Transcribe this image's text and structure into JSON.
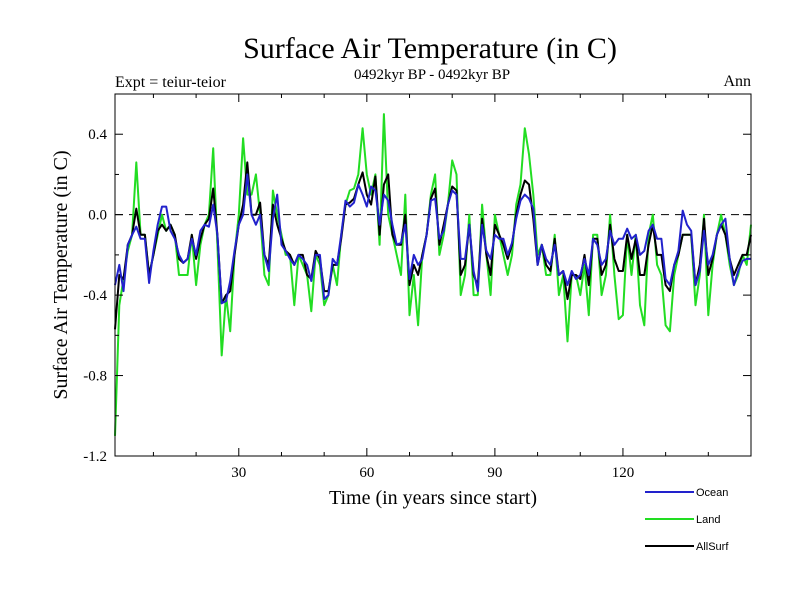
{
  "chart_data": {
    "type": "line",
    "title": "Surface Air Temperature (in C)",
    "subtitle": "0492kyr BP - 0492kyr BP",
    "left_annotation": "Expt = teiur-teior",
    "right_annotation": "Ann",
    "xlabel": "Time (in years since start)",
    "ylabel": "Surface Air Temperature (in C)",
    "xlim": [
      1,
      150
    ],
    "ylim": [
      -1.2,
      0.6
    ],
    "xticks": [
      30,
      60,
      90,
      120
    ],
    "xtick_labels": [
      "30",
      "60",
      "90",
      "120"
    ],
    "yticks": [
      -1.2,
      -0.8,
      -0.4,
      0.0,
      0.4
    ],
    "ytick_labels": [
      "-1.2",
      "-0.8",
      "-0.4",
      "0.0",
      "0.4"
    ],
    "zero_line": true,
    "grid": false,
    "legend_position": "bottom-right",
    "series": [
      {
        "name": "Land",
        "color": "#22dd22",
        "x": [
          1,
          2,
          3,
          4,
          5,
          6,
          7,
          8,
          9,
          10,
          11,
          12,
          13,
          14,
          15,
          16,
          17,
          18,
          19,
          20,
          21,
          22,
          23,
          24,
          25,
          26,
          27,
          28,
          29,
          30,
          31,
          32,
          33,
          34,
          35,
          36,
          37,
          38,
          39,
          40,
          41,
          42,
          43,
          44,
          45,
          46,
          47,
          48,
          49,
          50,
          51,
          52,
          53,
          54,
          55,
          56,
          57,
          58,
          59,
          60,
          61,
          62,
          63,
          64,
          65,
          66,
          67,
          68,
          69,
          70,
          71,
          72,
          73,
          74,
          75,
          76,
          77,
          78,
          79,
          80,
          81,
          82,
          83,
          84,
          85,
          86,
          87,
          88,
          89,
          90,
          91,
          92,
          93,
          94,
          95,
          96,
          97,
          98,
          99,
          100,
          101,
          102,
          103,
          104,
          105,
          106,
          107,
          108,
          109,
          110,
          111,
          112,
          113,
          114,
          115,
          116,
          117,
          118,
          119,
          120,
          121,
          122,
          123,
          124,
          125,
          126,
          127,
          128,
          129,
          130,
          131,
          132,
          133,
          134,
          135,
          136,
          137,
          138,
          139,
          140,
          141,
          142,
          143,
          144,
          145,
          146,
          147,
          148,
          149,
          150
        ],
        "y": [
          -1.1,
          -0.45,
          -0.32,
          -0.18,
          -0.1,
          0.26,
          -0.1,
          -0.1,
          -0.3,
          -0.2,
          -0.1,
          0.0,
          -0.08,
          -0.05,
          -0.1,
          -0.3,
          -0.3,
          -0.3,
          -0.1,
          -0.35,
          -0.15,
          -0.05,
          0.0,
          0.33,
          -0.15,
          -0.7,
          -0.4,
          -0.58,
          -0.2,
          0.0,
          0.38,
          0.1,
          0.1,
          0.2,
          0.0,
          -0.3,
          -0.35,
          0.12,
          0.0,
          -0.1,
          -0.2,
          -0.2,
          -0.45,
          -0.2,
          -0.25,
          -0.3,
          -0.48,
          -0.2,
          -0.25,
          -0.45,
          -0.4,
          -0.25,
          -0.35,
          -0.1,
          0.05,
          0.12,
          0.13,
          0.2,
          0.43,
          0.2,
          0.1,
          0.2,
          -0.15,
          0.5,
          0.0,
          -0.1,
          -0.2,
          -0.3,
          0.1,
          -0.5,
          -0.3,
          -0.55,
          -0.2,
          -0.1,
          0.1,
          0.2,
          -0.2,
          -0.1,
          0.05,
          0.27,
          0.2,
          -0.4,
          -0.3,
          0.0,
          -0.4,
          -0.4,
          0.05,
          -0.2,
          -0.4,
          0.0,
          -0.1,
          -0.2,
          -0.3,
          -0.2,
          0.05,
          0.15,
          0.43,
          0.3,
          0.1,
          -0.2,
          -0.15,
          -0.3,
          -0.3,
          -0.1,
          -0.4,
          -0.3,
          -0.63,
          -0.3,
          -0.3,
          -0.4,
          -0.25,
          -0.5,
          -0.1,
          -0.1,
          -0.4,
          -0.3,
          0.0,
          -0.3,
          -0.52,
          -0.5,
          -0.1,
          -0.3,
          -0.1,
          -0.45,
          -0.55,
          -0.1,
          0.0,
          -0.25,
          -0.3,
          -0.55,
          -0.58,
          -0.3,
          -0.2,
          -0.1,
          -0.1,
          -0.1,
          -0.45,
          -0.3,
          0.0,
          -0.5,
          -0.25,
          -0.1,
          0.0,
          -0.1,
          -0.25,
          -0.35,
          -0.3,
          -0.2,
          -0.25,
          -0.05
        ]
      },
      {
        "name": "AllSurf",
        "color": "#000000",
        "x": [
          1,
          2,
          3,
          4,
          5,
          6,
          7,
          8,
          9,
          10,
          11,
          12,
          13,
          14,
          15,
          16,
          17,
          18,
          19,
          20,
          21,
          22,
          23,
          24,
          25,
          26,
          27,
          28,
          29,
          30,
          31,
          32,
          33,
          34,
          35,
          36,
          37,
          38,
          39,
          40,
          41,
          42,
          43,
          44,
          45,
          46,
          47,
          48,
          49,
          50,
          51,
          52,
          53,
          54,
          55,
          56,
          57,
          58,
          59,
          60,
          61,
          62,
          63,
          64,
          65,
          66,
          67,
          68,
          69,
          70,
          71,
          72,
          73,
          74,
          75,
          76,
          77,
          78,
          79,
          80,
          81,
          82,
          83,
          84,
          85,
          86,
          87,
          88,
          89,
          90,
          91,
          92,
          93,
          94,
          95,
          96,
          97,
          98,
          99,
          100,
          101,
          102,
          103,
          104,
          105,
          106,
          107,
          108,
          109,
          110,
          111,
          112,
          113,
          114,
          115,
          116,
          117,
          118,
          119,
          120,
          121,
          122,
          123,
          124,
          125,
          126,
          127,
          128,
          129,
          130,
          131,
          132,
          133,
          134,
          135,
          136,
          137,
          138,
          139,
          140,
          141,
          142,
          143,
          144,
          145,
          146,
          147,
          148,
          149,
          150
        ],
        "y": [
          -0.57,
          -0.3,
          -0.32,
          -0.15,
          -0.1,
          0.03,
          -0.1,
          -0.1,
          -0.3,
          -0.2,
          -0.08,
          -0.05,
          -0.08,
          -0.05,
          -0.1,
          -0.22,
          -0.24,
          -0.22,
          -0.1,
          -0.22,
          -0.12,
          -0.05,
          -0.02,
          0.13,
          -0.1,
          -0.44,
          -0.4,
          -0.38,
          -0.2,
          -0.05,
          0.05,
          0.26,
          0.0,
          0.0,
          0.06,
          -0.2,
          -0.25,
          0.05,
          -0.05,
          -0.12,
          -0.18,
          -0.2,
          -0.25,
          -0.2,
          -0.2,
          -0.3,
          -0.32,
          -0.18,
          -0.22,
          -0.38,
          -0.38,
          -0.25,
          -0.25,
          -0.12,
          0.05,
          0.06,
          0.08,
          0.15,
          0.21,
          0.1,
          0.05,
          0.19,
          -0.1,
          0.15,
          0.2,
          -0.1,
          -0.15,
          -0.15,
          0.0,
          -0.35,
          -0.25,
          -0.3,
          -0.2,
          -0.1,
          0.08,
          0.13,
          -0.15,
          -0.05,
          0.05,
          0.14,
          0.12,
          -0.3,
          -0.25,
          -0.05,
          -0.3,
          -0.35,
          -0.02,
          -0.2,
          -0.3,
          -0.05,
          -0.1,
          -0.15,
          -0.22,
          -0.15,
          0.0,
          0.1,
          0.17,
          0.15,
          -0.02,
          -0.25,
          -0.15,
          -0.25,
          -0.28,
          -0.12,
          -0.3,
          -0.28,
          -0.42,
          -0.3,
          -0.3,
          -0.32,
          -0.2,
          -0.35,
          -0.12,
          -0.12,
          -0.3,
          -0.25,
          -0.05,
          -0.22,
          -0.28,
          -0.28,
          -0.1,
          -0.22,
          -0.12,
          -0.3,
          -0.3,
          -0.15,
          -0.05,
          -0.2,
          -0.2,
          -0.35,
          -0.38,
          -0.25,
          -0.2,
          -0.1,
          -0.1,
          -0.1,
          -0.35,
          -0.25,
          -0.02,
          -0.3,
          -0.22,
          -0.1,
          -0.05,
          -0.1,
          -0.22,
          -0.3,
          -0.25,
          -0.2,
          -0.2,
          -0.1
        ]
      },
      {
        "name": "Ocean",
        "color": "#2222cc",
        "x": [
          1,
          2,
          3,
          4,
          5,
          6,
          7,
          8,
          9,
          10,
          11,
          12,
          13,
          14,
          15,
          16,
          17,
          18,
          19,
          20,
          21,
          22,
          23,
          24,
          25,
          26,
          27,
          28,
          29,
          30,
          31,
          32,
          33,
          34,
          35,
          36,
          37,
          38,
          39,
          40,
          41,
          42,
          43,
          44,
          45,
          46,
          47,
          48,
          49,
          50,
          51,
          52,
          53,
          54,
          55,
          56,
          57,
          58,
          59,
          60,
          61,
          62,
          63,
          64,
          65,
          66,
          67,
          68,
          69,
          70,
          71,
          72,
          73,
          74,
          75,
          76,
          77,
          78,
          79,
          80,
          81,
          82,
          83,
          84,
          85,
          86,
          87,
          88,
          89,
          90,
          91,
          92,
          93,
          94,
          95,
          96,
          97,
          98,
          99,
          100,
          101,
          102,
          103,
          104,
          105,
          106,
          107,
          108,
          109,
          110,
          111,
          112,
          113,
          114,
          115,
          116,
          117,
          118,
          119,
          120,
          121,
          122,
          123,
          124,
          125,
          126,
          127,
          128,
          129,
          130,
          131,
          132,
          133,
          134,
          135,
          136,
          137,
          138,
          139,
          140,
          141,
          142,
          143,
          144,
          145,
          146,
          147,
          148,
          149,
          150
        ],
        "y": [
          -0.35,
          -0.25,
          -0.38,
          -0.15,
          -0.1,
          -0.06,
          -0.12,
          -0.12,
          -0.34,
          -0.18,
          -0.05,
          0.04,
          0.04,
          -0.08,
          -0.12,
          -0.2,
          -0.24,
          -0.22,
          -0.12,
          -0.2,
          -0.08,
          -0.05,
          -0.06,
          0.05,
          -0.1,
          -0.44,
          -0.43,
          -0.33,
          -0.18,
          -0.05,
          0.0,
          0.2,
          0.0,
          -0.05,
          0.0,
          -0.2,
          -0.28,
          -0.02,
          0.1,
          -0.15,
          -0.18,
          -0.22,
          -0.25,
          -0.2,
          -0.22,
          -0.25,
          -0.33,
          -0.2,
          -0.2,
          -0.42,
          -0.4,
          -0.22,
          -0.25,
          -0.1,
          0.07,
          0.04,
          0.06,
          0.15,
          0.1,
          0.04,
          0.14,
          0.12,
          -0.05,
          0.1,
          0.07,
          -0.05,
          -0.15,
          -0.14,
          -0.05,
          -0.32,
          -0.2,
          -0.25,
          -0.22,
          -0.1,
          0.07,
          0.08,
          -0.12,
          -0.08,
          0.05,
          0.12,
          0.1,
          -0.22,
          -0.22,
          -0.05,
          -0.28,
          -0.38,
          -0.05,
          -0.18,
          -0.22,
          -0.1,
          -0.12,
          -0.12,
          -0.2,
          -0.14,
          -0.02,
          0.07,
          0.1,
          0.08,
          0.03,
          -0.25,
          -0.15,
          -0.22,
          -0.25,
          -0.15,
          -0.3,
          -0.28,
          -0.35,
          -0.28,
          -0.32,
          -0.3,
          -0.22,
          -0.3,
          -0.12,
          -0.15,
          -0.25,
          -0.22,
          -0.08,
          -0.15,
          -0.12,
          -0.12,
          -0.07,
          -0.12,
          -0.1,
          -0.2,
          -0.18,
          -0.08,
          -0.05,
          -0.12,
          -0.12,
          -0.32,
          -0.35,
          -0.25,
          -0.18,
          0.02,
          -0.05,
          -0.08,
          -0.35,
          -0.28,
          -0.08,
          -0.25,
          -0.2,
          -0.1,
          -0.05,
          -0.02,
          -0.22,
          -0.35,
          -0.28,
          -0.23,
          -0.22,
          -0.22
        ]
      }
    ]
  }
}
